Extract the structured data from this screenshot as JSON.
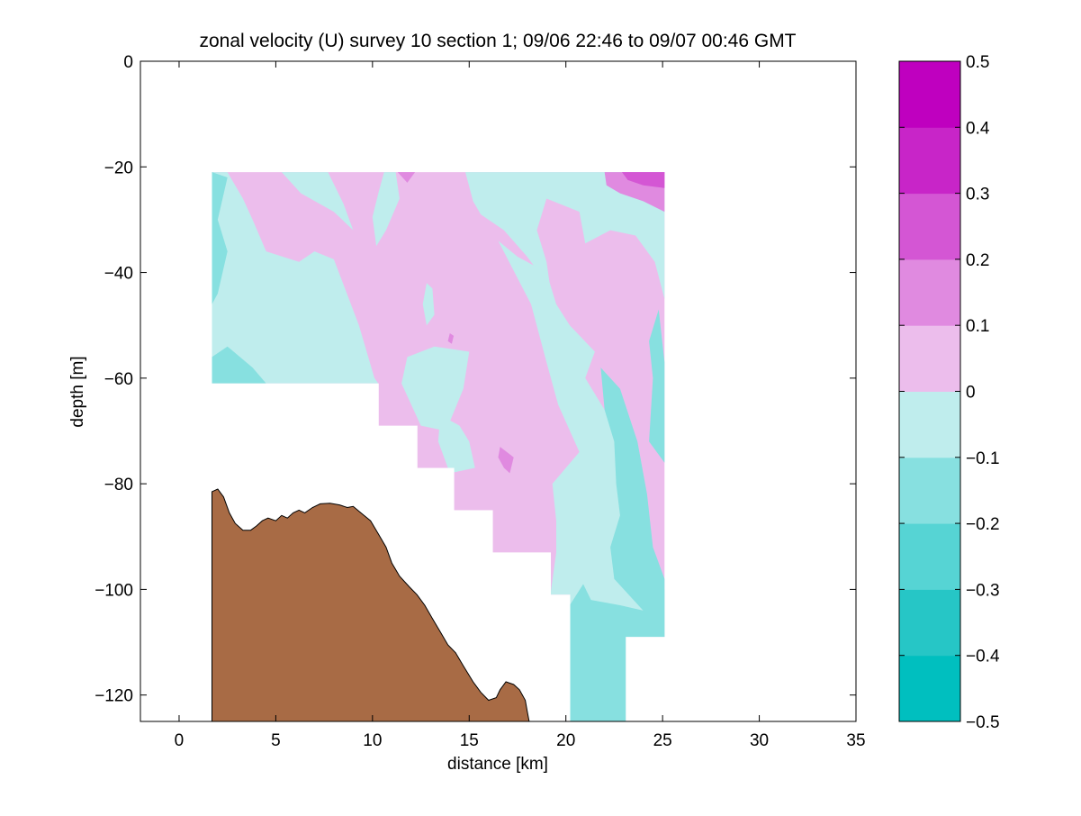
{
  "chart_data": {
    "type": "contour",
    "title": "zonal velocity (U) survey 10 section 1; 09/06 22:46 to 09/07 00:46 GMT",
    "xlabel": "distance [km]",
    "ylabel": "depth [m]",
    "xlim": [
      -2,
      35
    ],
    "ylim": [
      -125,
      0
    ],
    "xticks": [
      0,
      5,
      10,
      15,
      20,
      25,
      30,
      35
    ],
    "yticks": [
      0,
      -20,
      -40,
      -60,
      -80,
      -100,
      -120
    ],
    "grid": false,
    "colorbar": {
      "levels": [
        -0.5,
        -0.4,
        -0.3,
        -0.2,
        -0.1,
        0,
        0.1,
        0.2,
        0.3,
        0.4,
        0.5
      ],
      "tick_labels": [
        "0.5",
        "0.4",
        "0.3",
        "0.2",
        "0.1",
        "0",
        "−0.1",
        "−0.2",
        "−0.3",
        "−0.4",
        "−0.5"
      ],
      "colors": [
        "#00bfbf",
        "#26c6c6",
        "#56d4d4",
        "#87e0e0",
        "#bfeded",
        "#ecbdec",
        "#e08ae0",
        "#d456d4",
        "#c825c8",
        "#bf00bf"
      ]
    },
    "data_region": {
      "x_range": [
        1.7,
        25.1
      ],
      "top_depth": -21
    },
    "bottom_mask_steps": [
      {
        "x": [
          1.7,
          10.3
        ],
        "depth_below": -61
      },
      {
        "x": [
          10.3,
          12.3
        ],
        "depth_below": -69
      },
      {
        "x": [
          12.3,
          14.2
        ],
        "depth_below": -77
      },
      {
        "x": [
          14.2,
          16.2
        ],
        "depth_below": -85
      },
      {
        "x": [
          16.2,
          19.2
        ],
        "depth_below": -93
      },
      {
        "x": [
          19.2,
          20.2
        ],
        "depth_below": -101
      },
      {
        "x": [
          23.1,
          25.1
        ],
        "depth_below": -109
      }
    ],
    "bathymetry": {
      "color": "#a86b45",
      "points": [
        [
          1.7,
          -125
        ],
        [
          1.7,
          -81.5
        ],
        [
          2.0,
          -81
        ],
        [
          2.3,
          -82.5
        ],
        [
          2.6,
          -85.5
        ],
        [
          2.9,
          -87.5
        ],
        [
          3.3,
          -88.8
        ],
        [
          3.7,
          -88.8
        ],
        [
          4.0,
          -88
        ],
        [
          4.3,
          -87
        ],
        [
          4.6,
          -86.5
        ],
        [
          5.0,
          -87
        ],
        [
          5.3,
          -86
        ],
        [
          5.6,
          -86.5
        ],
        [
          5.9,
          -85.5
        ],
        [
          6.2,
          -85
        ],
        [
          6.5,
          -85.5
        ],
        [
          6.9,
          -84.5
        ],
        [
          7.3,
          -83.8
        ],
        [
          7.8,
          -83.7
        ],
        [
          8.3,
          -84
        ],
        [
          8.7,
          -84.5
        ],
        [
          9.0,
          -84.3
        ],
        [
          9.4,
          -85.5
        ],
        [
          9.9,
          -87
        ],
        [
          10.3,
          -89.5
        ],
        [
          10.7,
          -92
        ],
        [
          11.0,
          -95
        ],
        [
          11.4,
          -97.5
        ],
        [
          11.9,
          -99.5
        ],
        [
          12.3,
          -101
        ],
        [
          12.7,
          -103
        ],
        [
          13.1,
          -105.5
        ],
        [
          13.5,
          -108
        ],
        [
          13.9,
          -110.5
        ],
        [
          14.3,
          -112
        ],
        [
          14.7,
          -114.5
        ],
        [
          15.2,
          -117.5
        ],
        [
          15.6,
          -119.5
        ],
        [
          16.0,
          -121
        ],
        [
          16.4,
          -120.5
        ],
        [
          16.6,
          -119
        ],
        [
          16.9,
          -117.5
        ],
        [
          17.3,
          -118
        ],
        [
          17.6,
          -119
        ],
        [
          17.9,
          -121
        ],
        [
          18.0,
          -123
        ],
        [
          18.1,
          -125
        ]
      ]
    },
    "filled_regions": [
      {
        "level": [
          -0.1,
          0
        ],
        "points": [
          [
            1.7,
            -21
          ],
          [
            2.5,
            -21
          ],
          [
            3.3,
            -26
          ],
          [
            3.8,
            -30
          ],
          [
            4.5,
            -36
          ],
          [
            6.2,
            -38
          ],
          [
            7.0,
            -36
          ],
          [
            8.0,
            -37.5
          ],
          [
            9.3,
            -50
          ],
          [
            10.1,
            -60
          ],
          [
            10.3,
            -61
          ],
          [
            1.7,
            -61
          ]
        ]
      },
      {
        "level": [
          -0.1,
          0
        ],
        "points": [
          [
            5.3,
            -21
          ],
          [
            7.7,
            -21
          ],
          [
            8.5,
            -27
          ],
          [
            9.0,
            -32
          ],
          [
            8.0,
            -28.5
          ],
          [
            6.3,
            -25
          ]
        ]
      },
      {
        "level": [
          -0.1,
          0
        ],
        "points": [
          [
            10.6,
            -21
          ],
          [
            11.2,
            -21
          ],
          [
            11.4,
            -26
          ],
          [
            10.7,
            -32
          ],
          [
            10.2,
            -35
          ],
          [
            10.0,
            -29.5
          ],
          [
            10.3,
            -25
          ]
        ]
      },
      {
        "level": [
          -0.2,
          -0.1
        ],
        "points": [
          [
            1.7,
            -21
          ],
          [
            2.5,
            -22
          ],
          [
            2.0,
            -30
          ],
          [
            2.5,
            -36
          ],
          [
            2.0,
            -44
          ],
          [
            1.7,
            -46
          ]
        ]
      },
      {
        "level": [
          -0.2,
          -0.1
        ],
        "points": [
          [
            1.7,
            -56
          ],
          [
            2.5,
            -54
          ],
          [
            3.8,
            -58
          ],
          [
            4.5,
            -61
          ],
          [
            1.7,
            -61
          ]
        ]
      },
      {
        "level": [
          -0.1,
          0
        ],
        "points": [
          [
            14.8,
            -21
          ],
          [
            18.0,
            -21
          ],
          [
            25.1,
            -21
          ],
          [
            25.1,
            -45
          ],
          [
            24.6,
            -38
          ],
          [
            23.6,
            -33
          ],
          [
            22.3,
            -32
          ],
          [
            21.0,
            -34.5
          ],
          [
            20.7,
            -28.5
          ],
          [
            19.0,
            -26
          ],
          [
            18.5,
            -32
          ],
          [
            19.0,
            -38
          ],
          [
            19.2,
            -43
          ],
          [
            18.0,
            -37
          ],
          [
            16.8,
            -32
          ],
          [
            15.6,
            -29
          ],
          [
            15.2,
            -26.5
          ]
        ]
      },
      {
        "level": [
          -0.1,
          0
        ],
        "points": [
          [
            16.5,
            -34
          ],
          [
            18.2,
            -46
          ],
          [
            19.0,
            -57
          ],
          [
            19.6,
            -65
          ],
          [
            20.7,
            -74
          ],
          [
            19.3,
            -80
          ],
          [
            19.5,
            -87
          ],
          [
            19.5,
            -93
          ],
          [
            19.2,
            -101
          ],
          [
            20.2,
            -101
          ],
          [
            20.2,
            -125
          ],
          [
            23.1,
            -125
          ],
          [
            23.1,
            -109
          ],
          [
            25.1,
            -109
          ],
          [
            25.1,
            -100
          ],
          [
            24.5,
            -97
          ],
          [
            23.3,
            -89
          ],
          [
            23.0,
            -82
          ],
          [
            22.8,
            -72
          ],
          [
            22.0,
            -66
          ],
          [
            21.0,
            -60
          ],
          [
            21.5,
            -55
          ],
          [
            20.2,
            -50
          ],
          [
            19.5,
            -46
          ],
          [
            19.0,
            -40
          ],
          [
            18.0,
            -38
          ],
          [
            17.5,
            -37
          ]
        ]
      },
      {
        "level": [
          -0.1,
          0
        ],
        "points": [
          [
            11.8,
            -56
          ],
          [
            13.2,
            -54
          ],
          [
            15.0,
            -55
          ],
          [
            14.7,
            -62
          ],
          [
            13.8,
            -70
          ],
          [
            12.5,
            -69
          ],
          [
            11.5,
            -61
          ]
        ]
      },
      {
        "level": [
          -0.1,
          0
        ],
        "points": [
          [
            13.5,
            -67
          ],
          [
            14.5,
            -69
          ],
          [
            15.0,
            -72
          ],
          [
            15.3,
            -77
          ],
          [
            14.0,
            -78
          ],
          [
            13.4,
            -72
          ]
        ]
      },
      {
        "level": [
          -0.1,
          0
        ],
        "points": [
          [
            20.6,
            -79
          ],
          [
            21.5,
            -83
          ],
          [
            22.1,
            -89
          ],
          [
            21.4,
            -95
          ],
          [
            20.9,
            -91
          ],
          [
            20.4,
            -85
          ]
        ]
      },
      {
        "level": [
          -0.1,
          0
        ],
        "points": [
          [
            12.8,
            -42
          ],
          [
            13.1,
            -43
          ],
          [
            13.2,
            -48
          ],
          [
            12.8,
            -50
          ],
          [
            12.6,
            -46
          ]
        ]
      },
      {
        "level": [
          -0.2,
          -0.1
        ],
        "points": [
          [
            21.8,
            -58
          ],
          [
            22.8,
            -62
          ],
          [
            23.7,
            -72
          ],
          [
            24.2,
            -82
          ],
          [
            24.5,
            -92
          ],
          [
            25.1,
            -98
          ],
          [
            25.1,
            -109
          ],
          [
            23.1,
            -109
          ],
          [
            23.1,
            -125
          ],
          [
            20.2,
            -125
          ],
          [
            20.2,
            -103
          ],
          [
            20.9,
            -99
          ],
          [
            21.3,
            -102
          ],
          [
            22.8,
            -103
          ],
          [
            24.0,
            -104
          ],
          [
            22.5,
            -98
          ],
          [
            22.3,
            -92
          ],
          [
            22.8,
            -86
          ],
          [
            22.6,
            -80
          ],
          [
            22.5,
            -72
          ],
          [
            22.0,
            -66
          ]
        ]
      },
      {
        "level": [
          -0.2,
          -0.1
        ],
        "points": [
          [
            24.3,
            -53
          ],
          [
            24.8,
            -47
          ],
          [
            25.1,
            -57
          ],
          [
            25.1,
            -76
          ],
          [
            24.3,
            -72
          ],
          [
            24.5,
            -60
          ]
        ]
      },
      {
        "level": [
          0.1,
          0.2
        ],
        "points": [
          [
            22.0,
            -21
          ],
          [
            25.1,
            -21
          ],
          [
            25.1,
            -28.5
          ],
          [
            24.0,
            -26.5
          ],
          [
            22.8,
            -25
          ],
          [
            22.1,
            -23.5
          ]
        ]
      },
      {
        "level": [
          0.2,
          0.3
        ],
        "points": [
          [
            22.9,
            -21
          ],
          [
            25.1,
            -21
          ],
          [
            25.1,
            -24
          ],
          [
            24.0,
            -23.5
          ],
          [
            23.2,
            -22.5
          ]
        ]
      },
      {
        "level": [
          0.1,
          0.2
        ],
        "points": [
          [
            11.3,
            -21
          ],
          [
            12.2,
            -21
          ],
          [
            11.8,
            -23
          ]
        ]
      },
      {
        "level": [
          0.1,
          0.2
        ],
        "points": [
          [
            16.6,
            -73
          ],
          [
            17.3,
            -75
          ],
          [
            17.1,
            -78
          ],
          [
            16.8,
            -77
          ],
          [
            16.5,
            -75
          ]
        ]
      },
      {
        "level": [
          0.1,
          0.2
        ],
        "points": [
          [
            14.0,
            -51.5
          ],
          [
            14.2,
            -52
          ],
          [
            14.1,
            -53.5
          ],
          [
            13.9,
            -53
          ]
        ]
      }
    ]
  }
}
